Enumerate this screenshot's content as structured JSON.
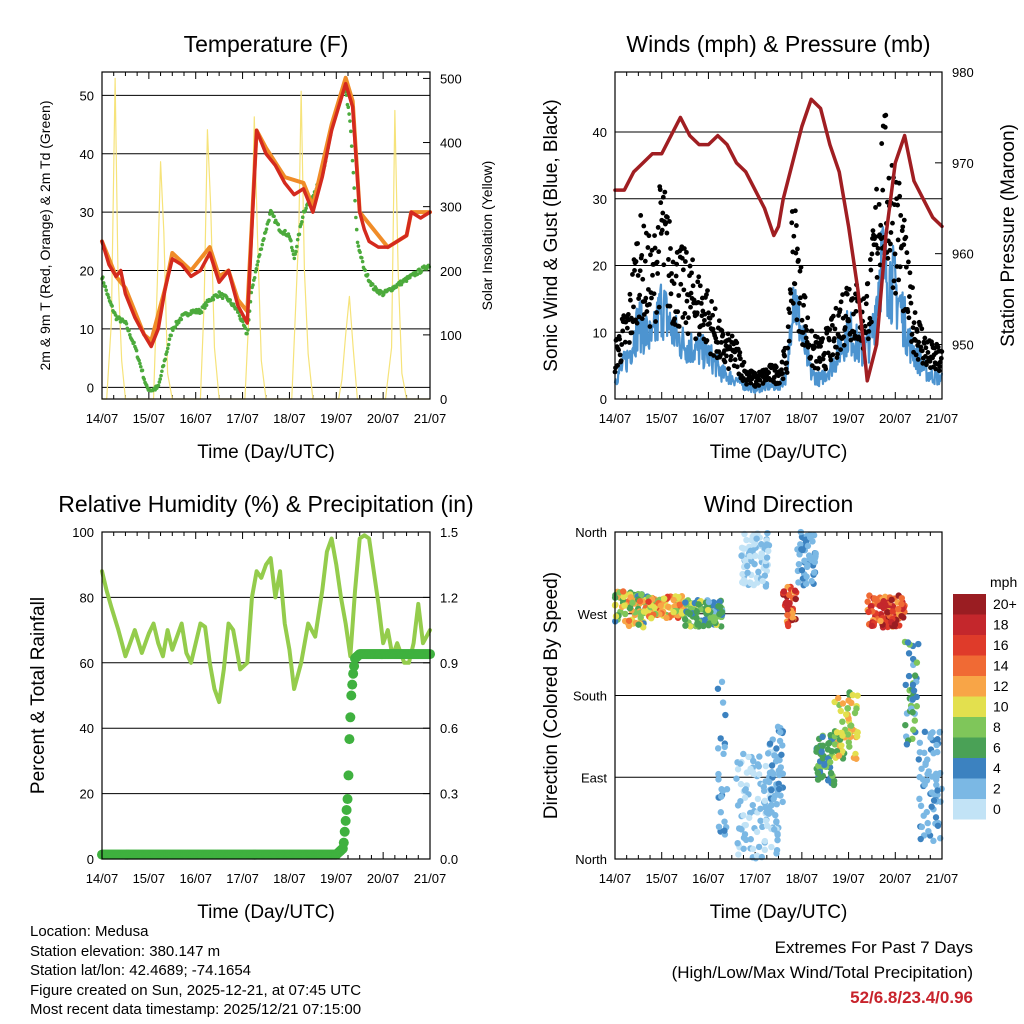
{
  "colors": {
    "temp_red": "#d42a1e",
    "temp_orange": "#f08c28",
    "dewpoint_green": "#4caa3c",
    "solar_yellow": "#f6e37a",
    "wind_blue": "#4d94d0",
    "gust_black": "#000000",
    "pressure_maroon": "#a01e22",
    "rh_green": "#94cc4c",
    "precip_green": "#3fb13f",
    "extremes_red": "#c8232c"
  },
  "chart_data": [
    {
      "id": "temperature",
      "type": "line",
      "title": "Temperature (F)",
      "xlabel": "Time (Day/UTC)",
      "ylabel": "2m & 9m T (Red, Orange) & 2m Td (Green)",
      "ylabel_right": "Solar Insolation (Yellow)",
      "x_ticks": [
        "14/07",
        "15/07",
        "16/07",
        "17/07",
        "18/07",
        "19/07",
        "20/07",
        "21/07"
      ],
      "xlim": [
        0,
        7
      ],
      "ylim": [
        -2,
        54
      ],
      "y_ticks": [
        "0",
        "10",
        "20",
        "30",
        "40",
        "50"
      ],
      "ylim_right": [
        0,
        510
      ],
      "y_ticks_right": [
        "0",
        "100",
        "200",
        "300",
        "400",
        "500"
      ],
      "series": [
        {
          "name": "2m T",
          "color": "#d42a1e",
          "x": [
            0,
            0.15,
            0.3,
            0.4,
            0.5,
            0.7,
            0.9,
            1.05,
            1.2,
            1.35,
            1.5,
            1.7,
            1.9,
            2.1,
            2.3,
            2.5,
            2.7,
            2.9,
            3.1,
            3.3,
            3.4,
            3.5,
            3.7,
            3.9,
            4.1,
            4.3,
            4.5,
            4.7,
            4.9,
            5.05,
            5.2,
            5.35,
            5.5,
            5.6,
            5.7,
            5.9,
            6.1,
            6.3,
            6.5,
            6.6,
            6.8,
            7.0
          ],
          "values": [
            25,
            21,
            19,
            20,
            16,
            12,
            9,
            7,
            10,
            17,
            22,
            21,
            19,
            20,
            23,
            18,
            20,
            14,
            11,
            44,
            42,
            40,
            38,
            35,
            33,
            34,
            30,
            36,
            44,
            48,
            52,
            48,
            30,
            27,
            25,
            24,
            24,
            25,
            26,
            30,
            29,
            30
          ]
        },
        {
          "name": "9m T",
          "color": "#f08c28",
          "x": [
            0,
            0.3,
            0.5,
            0.9,
            1.05,
            1.35,
            1.5,
            1.9,
            2.3,
            2.5,
            2.7,
            2.9,
            3.1,
            3.3,
            3.5,
            3.9,
            4.3,
            4.5,
            4.9,
            5.2,
            5.35,
            5.5,
            6.1,
            6.5,
            6.6,
            7.0
          ],
          "values": [
            25,
            19,
            17,
            9,
            8,
            17,
            23,
            20,
            24,
            19,
            20,
            15,
            13,
            44,
            41,
            36,
            35,
            31,
            45,
            53,
            49,
            30,
            24,
            26,
            30,
            30
          ]
        },
        {
          "name": "2m Td",
          "color": "#4caa3c",
          "x": [
            0,
            0.15,
            0.3,
            0.5,
            0.7,
            0.85,
            0.95,
            1.05,
            1.2,
            1.35,
            1.5,
            1.7,
            1.9,
            2.1,
            2.3,
            2.5,
            2.7,
            2.9,
            3.1,
            3.2,
            3.4,
            3.6,
            3.8,
            4.0,
            4.1,
            4.3,
            4.5,
            4.7,
            4.9,
            5.1,
            5.2,
            5.3,
            5.45,
            5.6,
            5.8,
            6.0,
            6.2,
            6.4,
            6.6,
            6.8,
            7.0
          ],
          "values": [
            19,
            15,
            12,
            11,
            7,
            3,
            0,
            -0.5,
            0,
            5,
            10,
            12,
            13,
            13,
            15,
            16,
            15,
            13,
            9,
            17,
            24,
            30,
            27,
            26,
            22,
            30,
            33,
            36,
            44,
            50,
            51,
            45,
            25,
            20,
            17,
            16,
            17,
            18,
            19,
            20,
            21
          ]
        },
        {
          "name": "Solar Insolation",
          "color": "#f6e37a",
          "axis": "right",
          "x": [
            0,
            0.1,
            0.2,
            0.28,
            0.34,
            0.42,
            0.5,
            0.6,
            0.9,
            1.1,
            1.18,
            1.25,
            1.32,
            1.4,
            1.5,
            1.8,
            2.1,
            2.18,
            2.25,
            2.32,
            2.4,
            2.5,
            2.8,
            3.05,
            3.18,
            3.25,
            3.32,
            3.4,
            3.5,
            3.8,
            4.05,
            4.2,
            4.25,
            4.32,
            4.4,
            4.5,
            4.8,
            5.05,
            5.12,
            5.2,
            5.28,
            5.36,
            5.45,
            5.8,
            6.05,
            6.18,
            6.25,
            6.32,
            6.4,
            6.5,
            7.0
          ],
          "values": [
            0,
            0,
            120,
            500,
            200,
            60,
            0,
            0,
            0,
            0,
            180,
            370,
            260,
            40,
            0,
            0,
            0,
            150,
            420,
            300,
            80,
            0,
            0,
            0,
            200,
            440,
            250,
            60,
            0,
            0,
            0,
            260,
            480,
            200,
            70,
            0,
            0,
            0,
            30,
            100,
            160,
            80,
            0,
            0,
            0,
            80,
            450,
            200,
            40,
            0,
            0
          ]
        }
      ]
    },
    {
      "id": "winds",
      "type": "scatter",
      "title": "Winds (mph) & Pressure (mb)",
      "xlabel": "Time (Day/UTC)",
      "ylabel": "Sonic Wind & Gust (Blue, Black)",
      "ylabel_right": "Station Pressure (Maroon)",
      "x_ticks": [
        "14/07",
        "15/07",
        "16/07",
        "17/07",
        "18/07",
        "19/07",
        "20/07",
        "21/07"
      ],
      "xlim": [
        0,
        7
      ],
      "ylim": [
        0,
        49
      ],
      "y_ticks": [
        "0",
        "10",
        "20",
        "30",
        "40"
      ],
      "ylim_right": [
        944,
        980
      ],
      "y_ticks_right": [
        "950",
        "960",
        "970",
        "980"
      ],
      "series": [
        {
          "name": "Gust",
          "color": "#000000",
          "x": [
            0,
            0.3,
            0.5,
            0.8,
            1.0,
            1.2,
            1.4,
            1.7,
            2.0,
            2.3,
            2.6,
            2.8,
            3.0,
            3.3,
            3.5,
            3.7,
            3.8,
            4.0,
            4.2,
            4.4,
            4.7,
            5.0,
            5.3,
            5.5,
            5.7,
            5.9,
            6.1,
            6.3,
            6.5,
            6.7,
            7.0
          ],
          "values": [
            7,
            12,
            22,
            18,
            27,
            20,
            18,
            16,
            13,
            8,
            7,
            4,
            3,
            4,
            4,
            7,
            26,
            15,
            8,
            7,
            10,
            16,
            12,
            18,
            35,
            31,
            26,
            15,
            10,
            7,
            6
          ]
        },
        {
          "name": "Wind",
          "color": "#4d94d0",
          "x": [
            0,
            0.3,
            0.5,
            0.8,
            1.0,
            1.2,
            1.4,
            1.7,
            2.0,
            2.3,
            2.6,
            2.8,
            3.0,
            3.3,
            3.5,
            3.7,
            3.8,
            4.0,
            4.2,
            4.4,
            4.7,
            5.0,
            5.3,
            5.5,
            5.7,
            5.9,
            6.1,
            6.3,
            6.5,
            6.7,
            7.0
          ],
          "values": [
            3,
            7,
            12,
            9,
            15,
            11,
            9,
            8,
            7,
            4,
            3,
            2,
            1.5,
            2,
            2,
            4,
            18,
            10,
            4,
            3,
            6,
            11,
            7,
            10,
            22,
            19,
            15,
            9,
            6,
            4,
            3
          ]
        },
        {
          "name": "Station Pressure",
          "color": "#a01e22",
          "axis": "right",
          "x": [
            0,
            0.2,
            0.4,
            0.6,
            0.8,
            1.0,
            1.2,
            1.4,
            1.6,
            1.8,
            2.0,
            2.2,
            2.4,
            2.6,
            2.8,
            3.0,
            3.2,
            3.4,
            3.5,
            3.6,
            3.8,
            4.0,
            4.2,
            4.4,
            4.6,
            4.8,
            5.0,
            5.2,
            5.4,
            5.6,
            5.8,
            6.0,
            6.2,
            6.4,
            6.6,
            6.8,
            7.0
          ],
          "values": [
            967,
            967,
            969,
            970,
            971,
            971,
            973,
            975,
            973,
            972,
            972,
            973,
            972,
            970,
            969,
            967,
            965,
            962,
            963,
            966,
            970,
            974,
            977,
            976,
            972,
            969,
            963,
            956,
            946,
            950,
            962,
            970,
            973,
            968,
            966,
            964,
            963
          ]
        }
      ]
    },
    {
      "id": "humidity",
      "type": "line",
      "title": "Relative Humidity (%) & Precipitation (in)",
      "xlabel": "Time (Day/UTC)",
      "ylabel": "Percent & Total Rainfall",
      "x_ticks": [
        "14/07",
        "15/07",
        "16/07",
        "17/07",
        "18/07",
        "19/07",
        "20/07",
        "21/07"
      ],
      "xlim": [
        0,
        7
      ],
      "ylim": [
        0,
        100
      ],
      "y_ticks": [
        "0",
        "20",
        "40",
        "60",
        "80",
        "100"
      ],
      "ylim_right": [
        0,
        1.5
      ],
      "y_ticks_right": [
        "0.0",
        "0.3",
        "0.6",
        "0.9",
        "1.2",
        "1.5"
      ],
      "series": [
        {
          "name": "Relative Humidity",
          "color": "#94cc4c",
          "x": [
            0,
            0.1,
            0.2,
            0.35,
            0.5,
            0.6,
            0.7,
            0.85,
            1.0,
            1.1,
            1.2,
            1.3,
            1.4,
            1.5,
            1.6,
            1.7,
            1.8,
            1.9,
            2.0,
            2.1,
            2.2,
            2.3,
            2.4,
            2.5,
            2.6,
            2.7,
            2.8,
            2.95,
            3.1,
            3.2,
            3.3,
            3.4,
            3.5,
            3.6,
            3.7,
            3.8,
            3.9,
            4.0,
            4.1,
            4.25,
            4.4,
            4.55,
            4.7,
            4.8,
            4.9,
            5.0,
            5.1,
            5.2,
            5.3,
            5.4,
            5.5,
            5.6,
            5.7,
            5.8,
            5.9,
            6.0,
            6.1,
            6.2,
            6.3,
            6.45,
            6.55,
            6.65,
            6.75,
            6.85,
            7.0
          ],
          "values": [
            88,
            82,
            77,
            70,
            62,
            66,
            70,
            63,
            69,
            72,
            66,
            62,
            70,
            64,
            68,
            72,
            63,
            60,
            66,
            72,
            71,
            60,
            52,
            48,
            58,
            72,
            70,
            58,
            60,
            80,
            88,
            86,
            90,
            92,
            80,
            88,
            72,
            64,
            52,
            60,
            72,
            68,
            82,
            94,
            98,
            90,
            80,
            72,
            62,
            82,
            98,
            99,
            98,
            88,
            78,
            66,
            70,
            62,
            66,
            60,
            60,
            66,
            78,
            66,
            70
          ]
        },
        {
          "name": "Total Precipitation",
          "color": "#3fb13f",
          "axis": "right",
          "x": [
            0,
            1,
            2,
            3,
            4,
            5.0,
            5.15,
            5.25,
            5.28,
            5.32,
            5.36,
            5.4,
            5.5,
            5.7,
            6.0,
            6.5,
            7.0
          ],
          "values": [
            0.02,
            0.02,
            0.02,
            0.02,
            0.02,
            0.02,
            0.05,
            0.3,
            0.55,
            0.75,
            0.85,
            0.92,
            0.94,
            0.94,
            0.94,
            0.94,
            0.94
          ]
        }
      ]
    },
    {
      "id": "direction",
      "type": "scatter",
      "title": "Wind Direction",
      "xlabel": "Time (Day/UTC)",
      "ylabel": "Direction (Colored By Speed)",
      "x_ticks": [
        "14/07",
        "15/07",
        "16/07",
        "17/07",
        "18/07",
        "19/07",
        "20/07",
        "21/07"
      ],
      "xlim": [
        0,
        7
      ],
      "ylim": [
        0,
        360
      ],
      "y_ticks": [
        "North",
        "East",
        "South",
        "West",
        "North"
      ],
      "y_tick_values": [
        0,
        90,
        180,
        270,
        360
      ],
      "legend": {
        "title": "mph",
        "position": "right",
        "labels": [
          "20+",
          "18",
          "16",
          "14",
          "12",
          "10",
          "8",
          "6",
          "4",
          "2",
          "0"
        ],
        "colors": [
          "#9a1d22",
          "#c4272c",
          "#df3b2a",
          "#f06a34",
          "#f8a547",
          "#e3e04e",
          "#7fc65a",
          "#4aa156",
          "#3c82c0",
          "#7bb8e4",
          "#c2e3f6"
        ]
      },
      "clusters": [
        {
          "x": [
            0,
            0.7
          ],
          "dir": [
            255,
            295
          ],
          "speed": [
            4,
            14
          ]
        },
        {
          "x": [
            0.7,
            1.5
          ],
          "dir": [
            265,
            290
          ],
          "speed": [
            8,
            16
          ]
        },
        {
          "x": [
            1.5,
            2.3
          ],
          "dir": [
            255,
            285
          ],
          "speed": [
            2,
            10
          ]
        },
        {
          "x": [
            2.2,
            2.4
          ],
          "dir": [
            20,
            200
          ],
          "speed": [
            1,
            4
          ]
        },
        {
          "x": [
            2.6,
            3.5
          ],
          "dir": [
            0,
            120
          ],
          "speed": [
            0,
            3
          ]
        },
        {
          "x": [
            2.7,
            3.3
          ],
          "dir": [
            300,
            360
          ],
          "speed": [
            0,
            2
          ]
        },
        {
          "x": [
            3.3,
            3.6
          ],
          "dir": [
            60,
            150
          ],
          "speed": [
            1,
            4
          ]
        },
        {
          "x": [
            3.6,
            3.9
          ],
          "dir": [
            255,
            300
          ],
          "speed": [
            12,
            20
          ]
        },
        {
          "x": [
            3.9,
            4.3
          ],
          "dir": [
            300,
            360
          ],
          "speed": [
            1,
            4
          ]
        },
        {
          "x": [
            4.3,
            4.7
          ],
          "dir": [
            80,
            140
          ],
          "speed": [
            3,
            8
          ]
        },
        {
          "x": [
            4.7,
            5.2
          ],
          "dir": [
            110,
            185
          ],
          "speed": [
            6,
            13
          ]
        },
        {
          "x": [
            5.4,
            6.2
          ],
          "dir": [
            255,
            290
          ],
          "speed": [
            12,
            20
          ]
        },
        {
          "x": [
            6.2,
            6.5
          ],
          "dir": [
            120,
            240
          ],
          "speed": [
            2,
            8
          ]
        },
        {
          "x": [
            6.5,
            7.0
          ],
          "dir": [
            20,
            140
          ],
          "speed": [
            1,
            4
          ]
        }
      ]
    }
  ],
  "station": {
    "location": "Location: Medusa",
    "elevation": "Station elevation: 380.147 m",
    "latlon": "Station lat/lon: 42.4689; -74.1654",
    "created": "Figure created on Sun, 2025-12-21, at 07:45 UTC",
    "recent": "Most recent data timestamp: 2025/12/21 07:15:00"
  },
  "extremes": {
    "title": "Extremes For Past 7 Days",
    "subtitle": "(High/Low/Max Wind/Total Precipitation)",
    "values": "52/6.8/23.4/0.96"
  }
}
